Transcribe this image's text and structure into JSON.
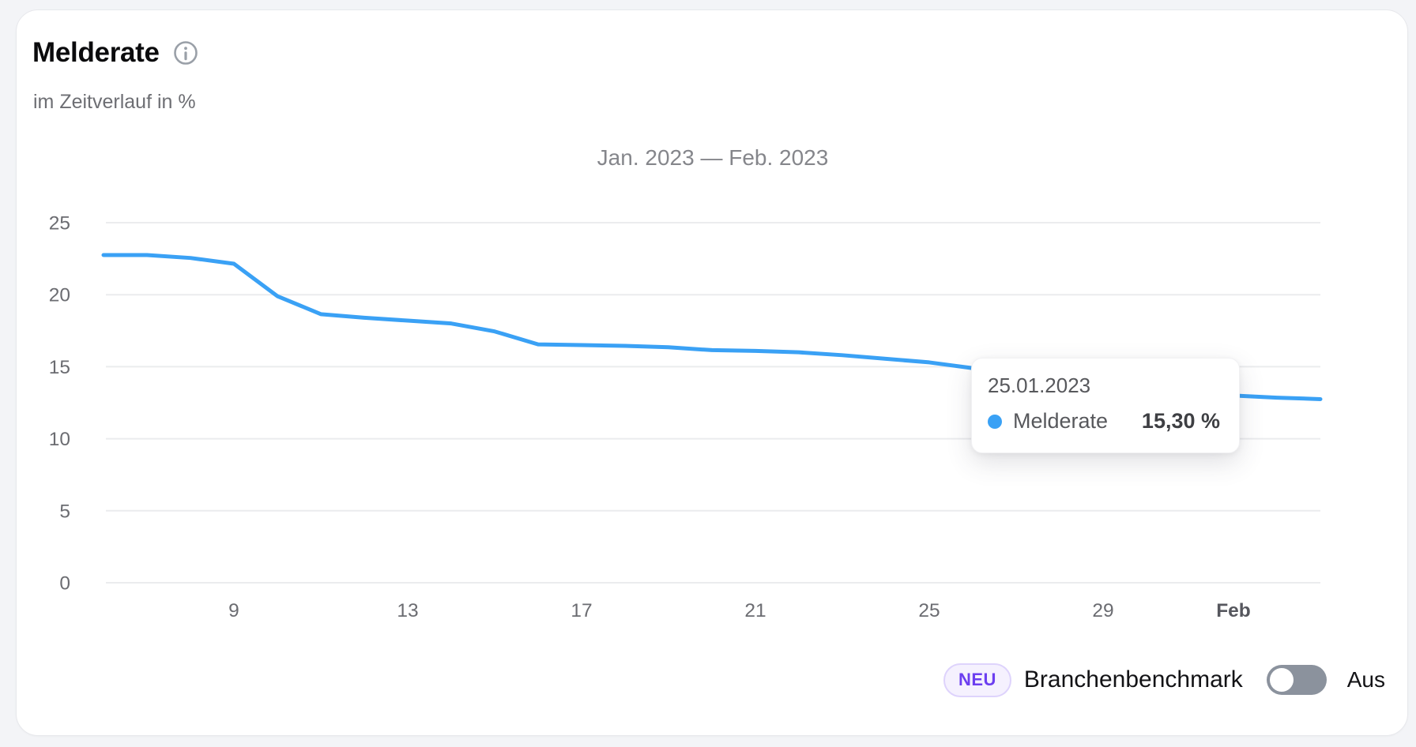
{
  "header": {
    "title": "Melderate",
    "subtitle": "im Zeitverlauf in %",
    "info_icon": "info-icon"
  },
  "chart_data": {
    "type": "line",
    "title": "Jan. 2023 — Feb. 2023",
    "xlabel": "",
    "ylabel": "",
    "unit": "%",
    "ylim": [
      0,
      25
    ],
    "grid": true,
    "legend": "none",
    "y_ticks": [
      25,
      20,
      15,
      10,
      5,
      0
    ],
    "x_ticks": [
      {
        "label": "9",
        "index": 3,
        "bold": false
      },
      {
        "label": "13",
        "index": 7,
        "bold": false
      },
      {
        "label": "17",
        "index": 11,
        "bold": false
      },
      {
        "label": "21",
        "index": 15,
        "bold": false
      },
      {
        "label": "25",
        "index": 19,
        "bold": false
      },
      {
        "label": "29",
        "index": 23,
        "bold": false
      },
      {
        "label": "Feb",
        "index": 26,
        "bold": true
      }
    ],
    "series": [
      {
        "name": "Melderate",
        "color": "#3aa1f5",
        "points": [
          {
            "date": "06.01.2023",
            "value": 22.75
          },
          {
            "date": "07.01.2023",
            "value": 22.75
          },
          {
            "date": "08.01.2023",
            "value": 22.55
          },
          {
            "date": "09.01.2023",
            "value": 22.15
          },
          {
            "date": "10.01.2023",
            "value": 19.9
          },
          {
            "date": "11.01.2023",
            "value": 18.65
          },
          {
            "date": "12.01.2023",
            "value": 18.4
          },
          {
            "date": "13.01.2023",
            "value": 18.2
          },
          {
            "date": "14.01.2023",
            "value": 18.0
          },
          {
            "date": "15.01.2023",
            "value": 17.45
          },
          {
            "date": "16.01.2023",
            "value": 16.55
          },
          {
            "date": "17.01.2023",
            "value": 16.5
          },
          {
            "date": "18.01.2023",
            "value": 16.45
          },
          {
            "date": "19.01.2023",
            "value": 16.35
          },
          {
            "date": "20.01.2023",
            "value": 16.15
          },
          {
            "date": "21.01.2023",
            "value": 16.1
          },
          {
            "date": "22.01.2023",
            "value": 16.0
          },
          {
            "date": "23.01.2023",
            "value": 15.8
          },
          {
            "date": "24.01.2023",
            "value": 15.55
          },
          {
            "date": "25.01.2023",
            "value": 15.3
          },
          {
            "date": "26.01.2023",
            "value": 14.9
          },
          {
            "date": "27.01.2023",
            "value": 14.55
          },
          {
            "date": "28.01.2023",
            "value": 14.2
          },
          {
            "date": "29.01.2023",
            "value": 13.85
          },
          {
            "date": "30.01.2023",
            "value": 13.5
          },
          {
            "date": "31.01.2023",
            "value": 13.2
          },
          {
            "date": "01.02.2023",
            "value": 13.0
          },
          {
            "date": "02.02.2023",
            "value": 12.85
          },
          {
            "date": "03.02.2023",
            "value": 12.75
          }
        ]
      }
    ]
  },
  "tooltip": {
    "date": "25.01.2023",
    "series_label": "Melderate",
    "value": "15,30 %"
  },
  "footer": {
    "badge": "NEU",
    "label": "Branchenbenchmark",
    "toggle_state": "Aus"
  },
  "colors": {
    "line": "#3aa1f5",
    "grid": "#ebecee",
    "axis_text": "#6b6c71",
    "axis_text_bold": "#56575e",
    "range_title": "#85868b",
    "badge_accent": "#6c3ef0",
    "toggle_track": "#8b929d"
  }
}
